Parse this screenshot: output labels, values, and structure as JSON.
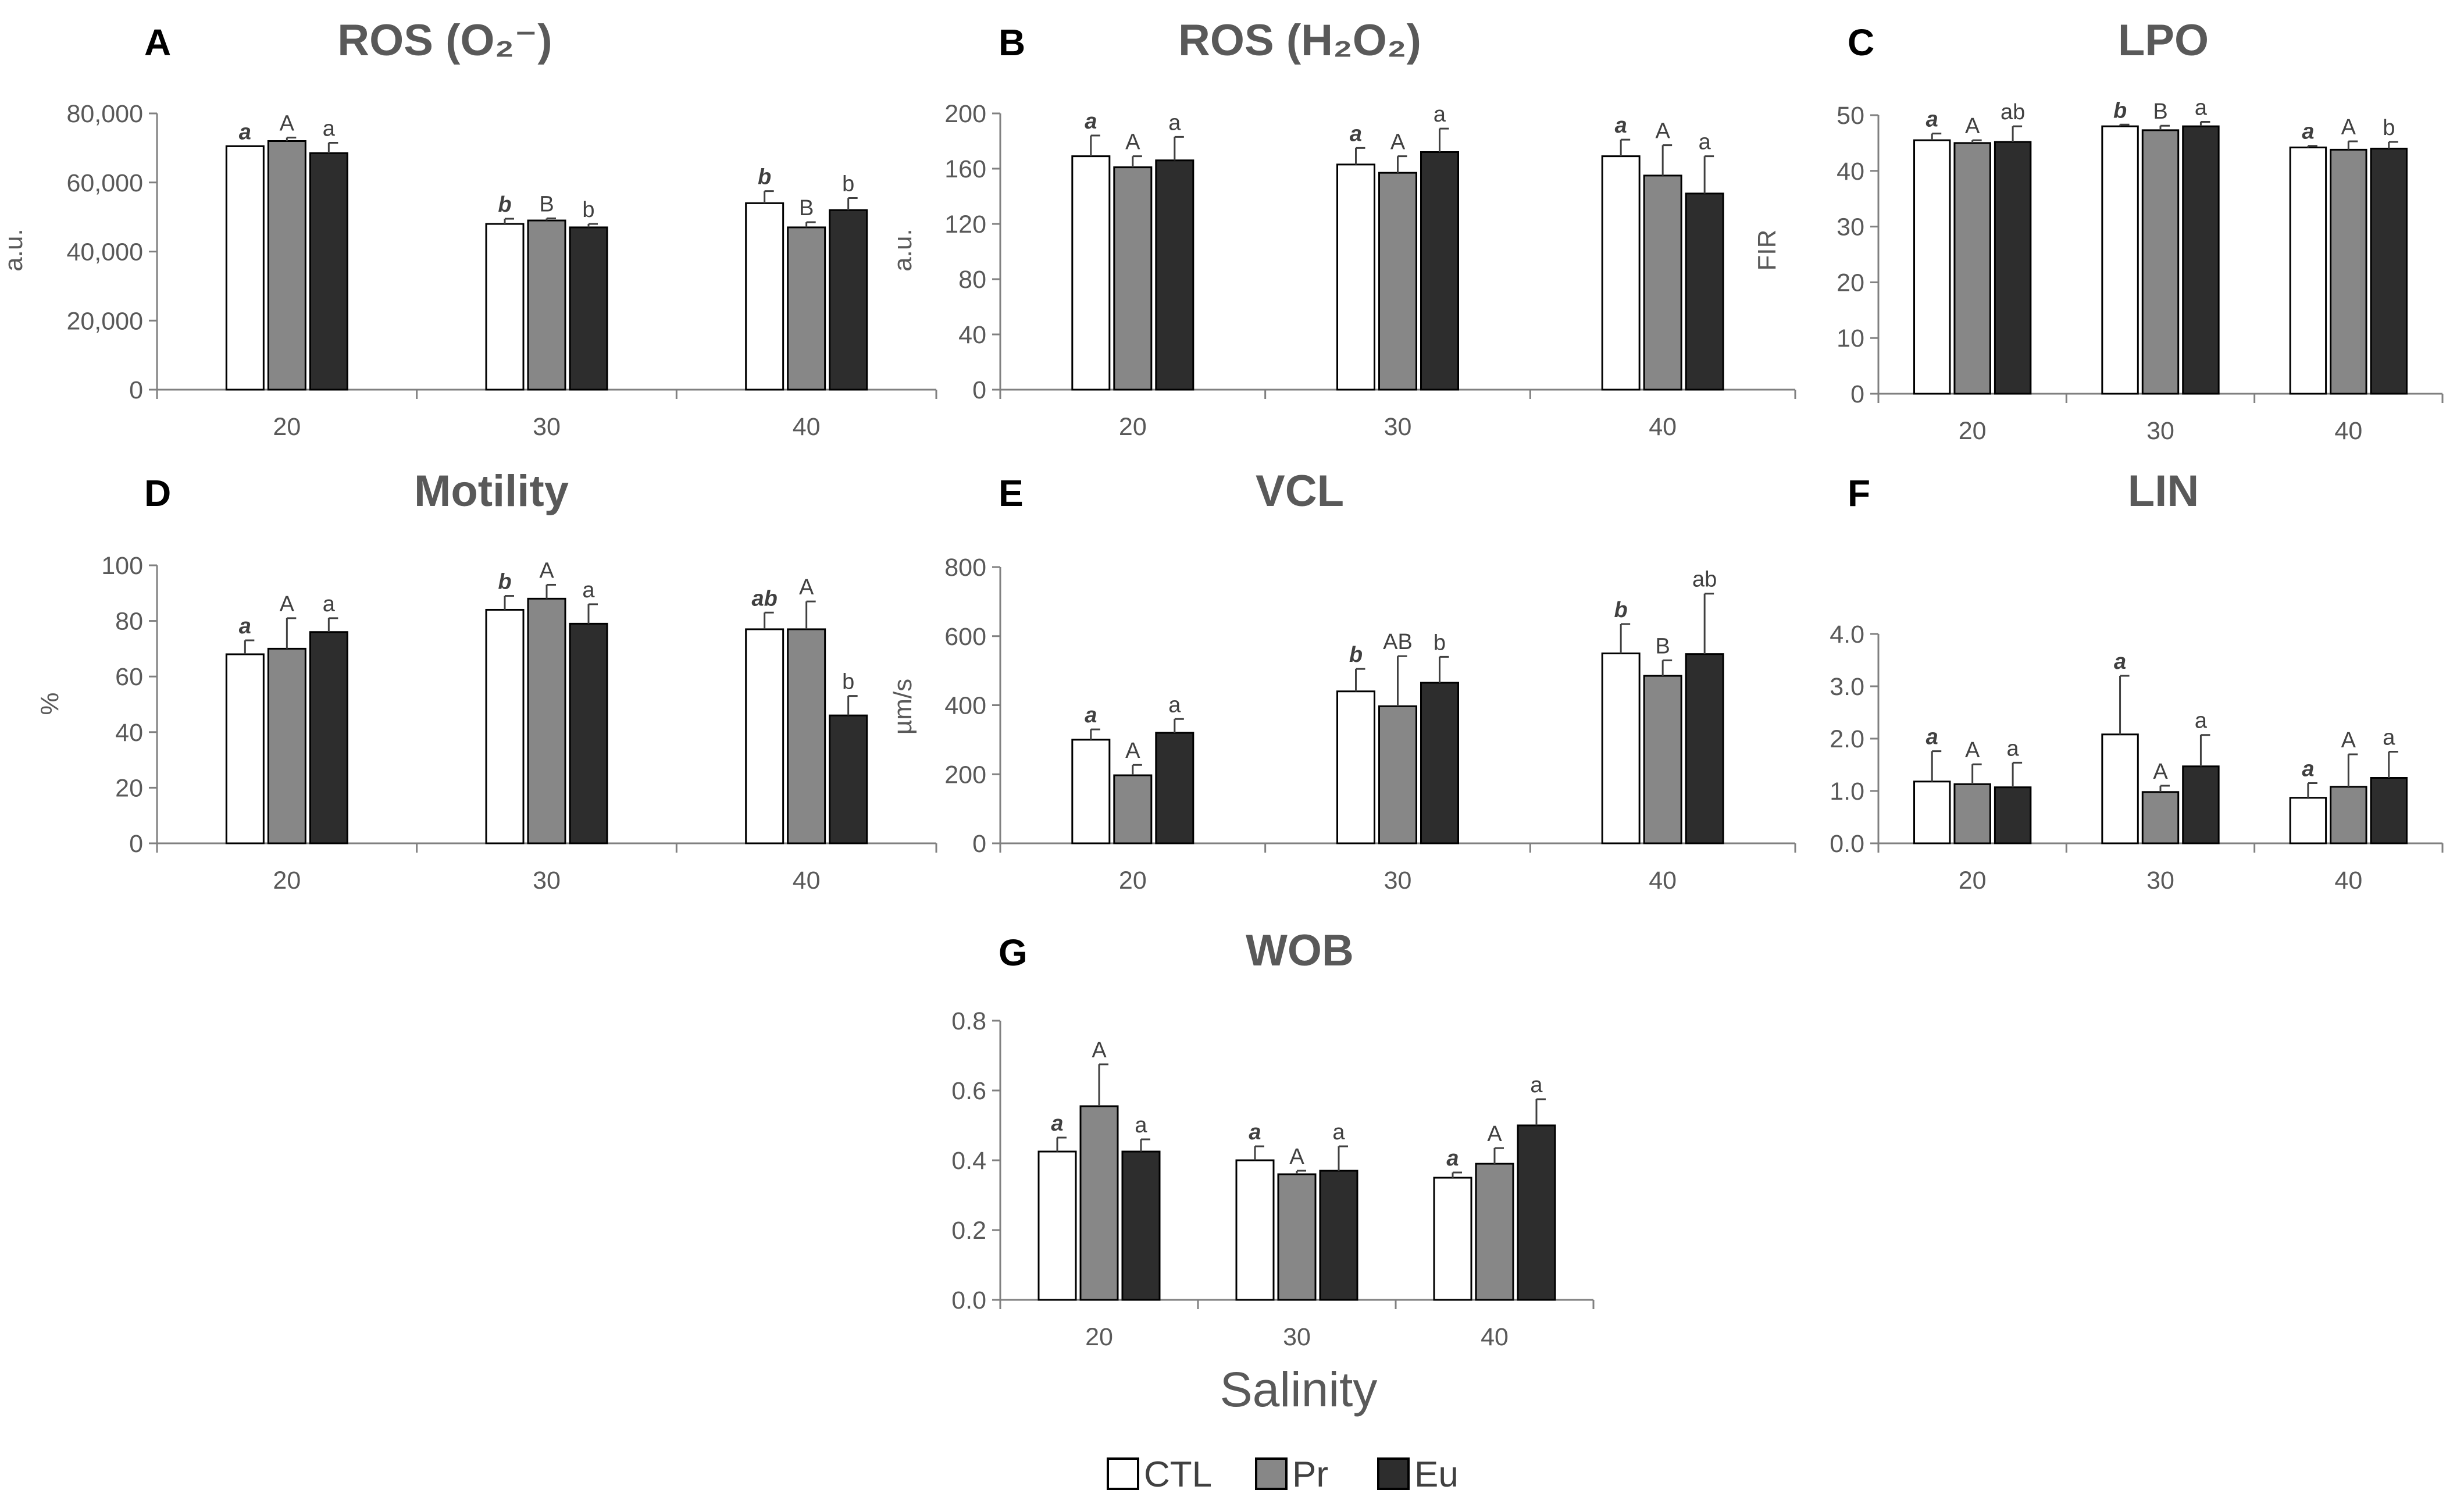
{
  "figure": {
    "xlabel": "Salinity",
    "legend": [
      {
        "name": "CTL",
        "color": "#ffffff"
      },
      {
        "name": "Pr",
        "color": "#878787"
      },
      {
        "name": "Eu",
        "color": "#2d2d2d"
      }
    ]
  },
  "chart_data": [
    {
      "type": "bar",
      "panel": "A",
      "title": "ROS (O₂⁻)",
      "ylabel": "a.u.",
      "categories": [
        "20",
        "30",
        "40"
      ],
      "ylim": [
        0,
        80000
      ],
      "yticks": [
        "0",
        "20,000",
        "40,000",
        "60,000",
        "80,000"
      ],
      "series": [
        {
          "name": "CTL",
          "values": [
            70500,
            48000,
            54000
          ],
          "errors": [
            0,
            1500,
            3500
          ],
          "letters": [
            "a",
            "b",
            "b"
          ]
        },
        {
          "name": "Pr",
          "values": [
            72000,
            49000,
            47000
          ],
          "errors": [
            1000,
            600,
            1500
          ],
          "letters": [
            "A",
            "B",
            "B"
          ]
        },
        {
          "name": "Eu",
          "values": [
            68500,
            47000,
            52000
          ],
          "errors": [
            3000,
            1000,
            3500
          ],
          "letters": [
            "a",
            "b",
            "b"
          ]
        }
      ]
    },
    {
      "type": "bar",
      "panel": "B",
      "title": "ROS (H₂O₂)",
      "ylabel": "a.u.",
      "categories": [
        "20",
        "30",
        "40"
      ],
      "ylim": [
        0,
        200
      ],
      "yticks": [
        "0",
        "40",
        "80",
        "120",
        "160",
        "200"
      ],
      "series": [
        {
          "name": "CTL",
          "values": [
            169,
            163,
            169
          ],
          "errors": [
            15,
            12,
            12
          ],
          "letters": [
            "a",
            "a",
            "a"
          ]
        },
        {
          "name": "Pr",
          "values": [
            161,
            157,
            155
          ],
          "errors": [
            8,
            12,
            22
          ],
          "letters": [
            "A",
            "A",
            "A"
          ]
        },
        {
          "name": "Eu",
          "values": [
            166,
            172,
            142
          ],
          "errors": [
            17,
            17,
            27
          ],
          "letters": [
            "a",
            "a",
            "a"
          ]
        }
      ]
    },
    {
      "type": "bar",
      "panel": "C",
      "title": "LPO",
      "ylabel": "FIR",
      "categories": [
        "20",
        "30",
        "40"
      ],
      "ylim": [
        0,
        50
      ],
      "yticks": [
        "0",
        "10",
        "20",
        "30",
        "40",
        "50"
      ],
      "series": [
        {
          "name": "CTL",
          "values": [
            45.5,
            48.0,
            44.2
          ],
          "errors": [
            1.2,
            0.3,
            0.3
          ],
          "letters": [
            "a",
            "b",
            "a"
          ]
        },
        {
          "name": "Pr",
          "values": [
            45.0,
            47.3,
            43.8
          ],
          "errors": [
            0.5,
            0.8,
            1.5
          ],
          "letters": [
            "A",
            "B",
            "A"
          ]
        },
        {
          "name": "Eu",
          "values": [
            45.2,
            48.0,
            44.0
          ],
          "errors": [
            2.8,
            0.8,
            1.2
          ],
          "letters": [
            "ab",
            "a",
            "b"
          ]
        }
      ]
    },
    {
      "type": "bar",
      "panel": "D",
      "title": "Motility",
      "ylabel": "%",
      "categories": [
        "20",
        "30",
        "40"
      ],
      "ylim": [
        0,
        100
      ],
      "yticks": [
        "0",
        "20",
        "40",
        "60",
        "80",
        "100"
      ],
      "series": [
        {
          "name": "CTL",
          "values": [
            68,
            84,
            77
          ],
          "errors": [
            5,
            5,
            6
          ],
          "letters": [
            "a",
            "b",
            "ab"
          ]
        },
        {
          "name": "Pr",
          "values": [
            70,
            88,
            77
          ],
          "errors": [
            11,
            5,
            10
          ],
          "letters": [
            "A",
            "A",
            "A"
          ]
        },
        {
          "name": "Eu",
          "values": [
            76,
            79,
            46
          ],
          "errors": [
            5,
            7,
            7
          ],
          "letters": [
            "a",
            "a",
            "b"
          ]
        }
      ]
    },
    {
      "type": "bar",
      "panel": "E",
      "title": "VCL",
      "ylabel": "µm/s",
      "categories": [
        "20",
        "30",
        "40"
      ],
      "ylim": [
        0,
        800
      ],
      "yticks": [
        "0",
        "200",
        "400",
        "600",
        "800"
      ],
      "series": [
        {
          "name": "CTL",
          "values": [
            300,
            440,
            550
          ],
          "errors": [
            30,
            65,
            85
          ],
          "letters": [
            "a",
            "b",
            "b"
          ]
        },
        {
          "name": "Pr",
          "values": [
            197,
            397,
            485
          ],
          "errors": [
            30,
            145,
            45
          ],
          "letters": [
            "A",
            "AB",
            "B"
          ]
        },
        {
          "name": "Eu",
          "values": [
            320,
            465,
            548
          ],
          "errors": [
            40,
            75,
            175
          ],
          "letters": [
            "a",
            "b",
            "ab"
          ]
        }
      ]
    },
    {
      "type": "bar",
      "panel": "F",
      "title": "LIN",
      "ylabel": "",
      "categories": [
        "20",
        "30",
        "40"
      ],
      "ylim": [
        0,
        4
      ],
      "yticks": [
        "0.0",
        "1.0",
        "2.0",
        "3.0",
        "4.0"
      ],
      "series": [
        {
          "name": "CTL",
          "values": [
            1.18,
            2.08,
            0.87
          ],
          "errors": [
            0.58,
            1.12,
            0.28
          ],
          "letters": [
            "a",
            "a",
            "a"
          ]
        },
        {
          "name": "Pr",
          "values": [
            1.13,
            0.98,
            1.08
          ],
          "errors": [
            0.38,
            0.12,
            0.62
          ],
          "letters": [
            "A",
            "A",
            "A"
          ]
        },
        {
          "name": "Eu",
          "values": [
            1.07,
            1.47,
            1.25
          ],
          "errors": [
            0.47,
            0.6,
            0.5
          ],
          "letters": [
            "a",
            "a",
            "a"
          ]
        }
      ]
    },
    {
      "type": "bar",
      "panel": "G",
      "title": "WOB",
      "ylabel": "",
      "categories": [
        "20",
        "30",
        "40"
      ],
      "ylim": [
        0,
        0.8
      ],
      "yticks": [
        "0.0",
        "0.2",
        "0.4",
        "0.6",
        "0.8"
      ],
      "series": [
        {
          "name": "CTL",
          "values": [
            0.425,
            0.4,
            0.35
          ],
          "errors": [
            0.04,
            0.04,
            0.015
          ],
          "letters": [
            "a",
            "a",
            "a"
          ]
        },
        {
          "name": "Pr",
          "values": [
            0.555,
            0.36,
            0.39
          ],
          "errors": [
            0.12,
            0.01,
            0.045
          ],
          "letters": [
            "A",
            "A",
            "A"
          ]
        },
        {
          "name": "Eu",
          "values": [
            0.425,
            0.37,
            0.5
          ],
          "errors": [
            0.035,
            0.07,
            0.075
          ],
          "letters": [
            "a",
            "a",
            "a"
          ]
        }
      ]
    }
  ]
}
